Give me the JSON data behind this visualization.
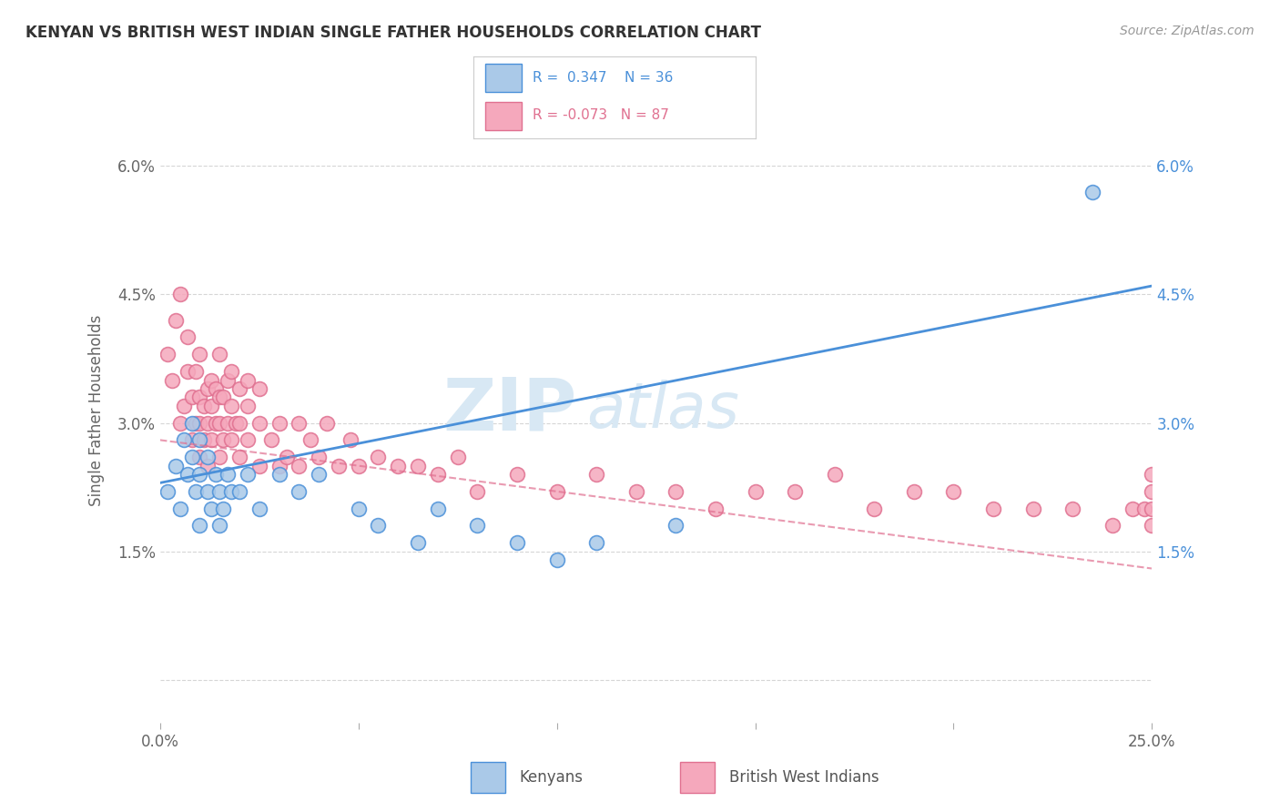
{
  "title": "KENYAN VS BRITISH WEST INDIAN SINGLE FATHER HOUSEHOLDS CORRELATION CHART",
  "source": "Source: ZipAtlas.com",
  "ylabel": "Single Father Households",
  "xlim": [
    0.0,
    0.25
  ],
  "ylim": [
    -0.005,
    0.068
  ],
  "xticks": [
    0.0,
    0.05,
    0.1,
    0.15,
    0.2,
    0.25
  ],
  "xticklabels": [
    "0.0%",
    "",
    "",
    "",
    "",
    "25.0%"
  ],
  "yticks": [
    0.0,
    0.015,
    0.03,
    0.045,
    0.06
  ],
  "yticklabels_left": [
    "",
    "1.5%",
    "3.0%",
    "4.5%",
    "6.0%"
  ],
  "yticklabels_right": [
    "",
    "1.5%",
    "3.0%",
    "4.5%",
    "6.0%"
  ],
  "kenyan_color": "#aac9e8",
  "bwi_color": "#f5a8bc",
  "kenyan_line_color": "#4a90d9",
  "bwi_line_color": "#e07090",
  "watermark_zip": "ZIP",
  "watermark_atlas": "atlas",
  "background_color": "#ffffff",
  "grid_color": "#cccccc",
  "title_fontsize": 12,
  "kenyan_x": [
    0.002,
    0.004,
    0.005,
    0.006,
    0.007,
    0.008,
    0.008,
    0.009,
    0.01,
    0.01,
    0.01,
    0.012,
    0.012,
    0.013,
    0.014,
    0.015,
    0.015,
    0.016,
    0.017,
    0.018,
    0.02,
    0.022,
    0.025,
    0.03,
    0.035,
    0.04,
    0.05,
    0.055,
    0.065,
    0.07,
    0.08,
    0.09,
    0.1,
    0.11,
    0.13,
    0.235
  ],
  "kenyan_y": [
    0.022,
    0.025,
    0.02,
    0.028,
    0.024,
    0.026,
    0.03,
    0.022,
    0.018,
    0.024,
    0.028,
    0.022,
    0.026,
    0.02,
    0.024,
    0.018,
    0.022,
    0.02,
    0.024,
    0.022,
    0.022,
    0.024,
    0.02,
    0.024,
    0.022,
    0.024,
    0.02,
    0.018,
    0.016,
    0.02,
    0.018,
    0.016,
    0.014,
    0.016,
    0.018,
    0.057
  ],
  "bwi_x": [
    0.002,
    0.003,
    0.004,
    0.005,
    0.005,
    0.006,
    0.007,
    0.007,
    0.008,
    0.008,
    0.009,
    0.009,
    0.01,
    0.01,
    0.01,
    0.01,
    0.011,
    0.011,
    0.012,
    0.012,
    0.012,
    0.013,
    0.013,
    0.013,
    0.014,
    0.014,
    0.015,
    0.015,
    0.015,
    0.015,
    0.016,
    0.016,
    0.017,
    0.017,
    0.018,
    0.018,
    0.018,
    0.019,
    0.02,
    0.02,
    0.02,
    0.022,
    0.022,
    0.022,
    0.025,
    0.025,
    0.025,
    0.028,
    0.03,
    0.03,
    0.032,
    0.035,
    0.035,
    0.038,
    0.04,
    0.042,
    0.045,
    0.048,
    0.05,
    0.055,
    0.06,
    0.065,
    0.07,
    0.075,
    0.08,
    0.09,
    0.1,
    0.11,
    0.12,
    0.13,
    0.14,
    0.15,
    0.16,
    0.17,
    0.18,
    0.19,
    0.2,
    0.21,
    0.22,
    0.23,
    0.24,
    0.245,
    0.248,
    0.25,
    0.25,
    0.25,
    0.25
  ],
  "bwi_y": [
    0.038,
    0.035,
    0.042,
    0.03,
    0.045,
    0.032,
    0.036,
    0.04,
    0.028,
    0.033,
    0.03,
    0.036,
    0.026,
    0.03,
    0.033,
    0.038,
    0.028,
    0.032,
    0.025,
    0.03,
    0.034,
    0.028,
    0.032,
    0.035,
    0.03,
    0.034,
    0.026,
    0.03,
    0.033,
    0.038,
    0.028,
    0.033,
    0.03,
    0.035,
    0.028,
    0.032,
    0.036,
    0.03,
    0.026,
    0.03,
    0.034,
    0.028,
    0.032,
    0.035,
    0.025,
    0.03,
    0.034,
    0.028,
    0.025,
    0.03,
    0.026,
    0.025,
    0.03,
    0.028,
    0.026,
    0.03,
    0.025,
    0.028,
    0.025,
    0.026,
    0.025,
    0.025,
    0.024,
    0.026,
    0.022,
    0.024,
    0.022,
    0.024,
    0.022,
    0.022,
    0.02,
    0.022,
    0.022,
    0.024,
    0.02,
    0.022,
    0.022,
    0.02,
    0.02,
    0.02,
    0.018,
    0.02,
    0.02,
    0.018,
    0.02,
    0.022,
    0.024
  ]
}
